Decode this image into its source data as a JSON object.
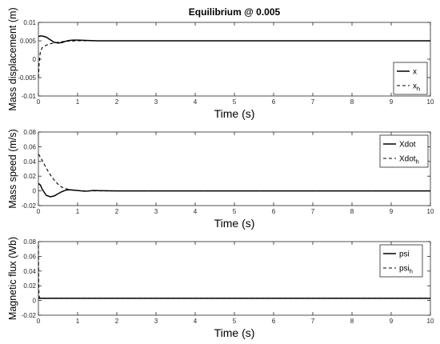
{
  "chart_data": [
    {
      "type": "line",
      "title": "Equilibrium @ 0.005",
      "xlabel": "Time (s)",
      "ylabel": "Mass displacement (m)",
      "xlim": [
        0,
        10
      ],
      "ylim": [
        -0.01,
        0.01
      ],
      "xticks": [
        "0",
        "1",
        "2",
        "3",
        "4",
        "5",
        "6",
        "7",
        "8",
        "9",
        "10"
      ],
      "yticks": [
        "-0.01",
        "-0.005",
        "0",
        "0.005",
        "0.01"
      ],
      "ytick_values": [
        -0.01,
        -0.005,
        0,
        0.005,
        0.01
      ],
      "legend_position": "right",
      "series": [
        {
          "name": "x",
          "sub": "",
          "style": "solid",
          "x": [
            0,
            0.05,
            0.1,
            0.2,
            0.3,
            0.4,
            0.5,
            0.6,
            0.7,
            0.8,
            0.9,
            1.0,
            1.2,
            1.5,
            2.0,
            10
          ],
          "y": [
            0.0062,
            0.0063,
            0.0063,
            0.006,
            0.0053,
            0.0046,
            0.0044,
            0.0045,
            0.0049,
            0.0051,
            0.0052,
            0.0052,
            0.0051,
            0.005,
            0.005,
            0.005
          ]
        },
        {
          "name": "x",
          "sub": "h",
          "style": "dashed",
          "x": [
            0,
            0.02,
            0.05,
            0.1,
            0.2,
            0.3,
            0.5,
            0.7,
            1.0,
            1.5,
            2.0,
            10
          ],
          "y": [
            -0.005,
            -0.001,
            0.002,
            0.0032,
            0.0038,
            0.0042,
            0.0046,
            0.0049,
            0.005,
            0.005,
            0.005,
            0.005
          ]
        }
      ]
    },
    {
      "type": "line",
      "title": "",
      "xlabel": "Time (s)",
      "ylabel": "Mass speed (m/s)",
      "xlim": [
        0,
        10
      ],
      "ylim": [
        -0.02,
        0.08
      ],
      "xticks": [
        "0",
        "1",
        "2",
        "3",
        "4",
        "5",
        "6",
        "7",
        "8",
        "9",
        "10"
      ],
      "yticks": [
        "-0.02",
        "0",
        "0.02",
        "0.04",
        "0.06",
        "0.08"
      ],
      "ytick_values": [
        -0.02,
        0,
        0.02,
        0.04,
        0.06,
        0.08
      ],
      "legend_position": "top-right",
      "series": [
        {
          "name": "Xdot",
          "sub": "",
          "style": "solid",
          "x": [
            0,
            0.05,
            0.1,
            0.2,
            0.3,
            0.4,
            0.5,
            0.6,
            0.7,
            0.8,
            1.0,
            1.2,
            1.4,
            1.6,
            2.0,
            10
          ],
          "y": [
            0.01,
            0.008,
            0.002,
            -0.006,
            -0.008,
            -0.007,
            -0.004,
            -0.001,
            0.001,
            0.0015,
            0.0005,
            -0.0005,
            0.0005,
            0.0002,
            0,
            0
          ]
        },
        {
          "name": "Xdot",
          "sub": "h",
          "style": "dashed",
          "x": [
            0,
            0.05,
            0.1,
            0.2,
            0.3,
            0.4,
            0.5,
            0.6,
            0.7,
            0.8,
            1.0,
            1.2,
            2.0,
            10
          ],
          "y": [
            0.05,
            0.046,
            0.041,
            0.031,
            0.022,
            0.015,
            0.009,
            0.005,
            0.003,
            0.0015,
            0.0005,
            0,
            0,
            0
          ]
        }
      ]
    },
    {
      "type": "line",
      "title": "",
      "xlabel": "Time (s)",
      "ylabel": "Magnetic flux (Wb)",
      "xlim": [
        0,
        10
      ],
      "ylim": [
        -0.02,
        0.08
      ],
      "xticks": [
        "0",
        "1",
        "2",
        "3",
        "4",
        "5",
        "6",
        "7",
        "8",
        "9",
        "10"
      ],
      "yticks": [
        "-0.02",
        "0",
        "0.02",
        "0.04",
        "0.06",
        "0.08"
      ],
      "ytick_values": [
        -0.02,
        0,
        0.02,
        0.04,
        0.06,
        0.08
      ],
      "legend_position": "top-right",
      "series": [
        {
          "name": "psi",
          "sub": "",
          "style": "solid",
          "x": [
            0,
            0.1,
            0.5,
            1,
            2,
            5,
            10
          ],
          "y": [
            0.003,
            0.003,
            0.003,
            0.003,
            0.003,
            0.003,
            0.003
          ]
        },
        {
          "name": "psi",
          "sub": "h",
          "style": "dashed",
          "x": [
            0,
            0.005,
            0.01,
            0.02,
            0.05,
            0.1,
            10
          ],
          "y": [
            0.075,
            0.04,
            0.015,
            0.005,
            0.003,
            0.003,
            0.003
          ]
        }
      ]
    }
  ]
}
